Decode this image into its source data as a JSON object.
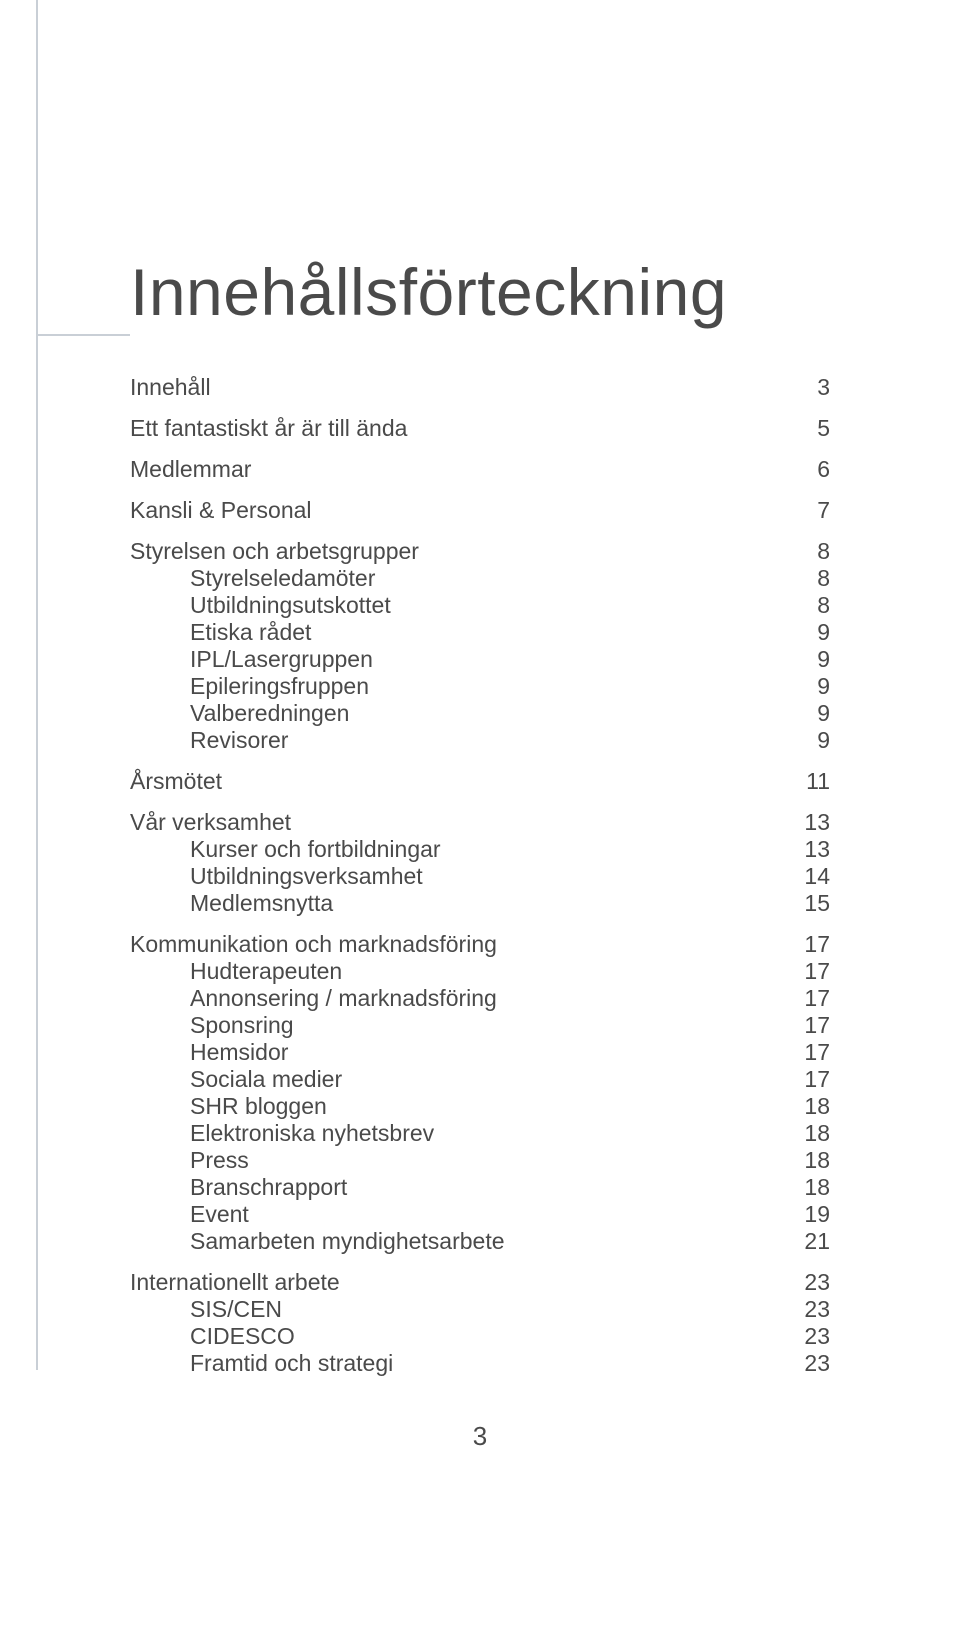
{
  "title": "Innehållsförteckning",
  "colors": {
    "background": "#ffffff",
    "text": "#4a4a4a",
    "rule": "#c9cfd6"
  },
  "typography": {
    "title_fontsize": 66,
    "title_weight": 200,
    "body_fontsize": 23,
    "body_weight": 300,
    "font_family": "Helvetica Neue"
  },
  "toc": [
    {
      "label": "Innehåll",
      "page": "3",
      "level": 0
    },
    {
      "label": "Ett fantastiskt år är till ända",
      "page": "5",
      "level": 0
    },
    {
      "label": "Medlemmar",
      "page": "6",
      "level": 0
    },
    {
      "label": "Kansli & Personal",
      "page": "7",
      "level": 0
    },
    {
      "label": "Styrelsen och arbetsgrupper",
      "page": "8",
      "level": 0
    },
    {
      "label": "Styrelseledamöter",
      "page": "8",
      "level": 1
    },
    {
      "label": "Utbildningsutskottet",
      "page": "8",
      "level": 1
    },
    {
      "label": "Etiska rådet",
      "page": "9",
      "level": 1
    },
    {
      "label": "IPL/Lasergruppen",
      "page": "9",
      "level": 1
    },
    {
      "label": "Epileringsfruppen",
      "page": "9",
      "level": 1
    },
    {
      "label": "Valberedningen",
      "page": "9",
      "level": 1
    },
    {
      "label": "Revisorer",
      "page": "9",
      "level": 1
    },
    {
      "label": "Årsmötet",
      "page": "11",
      "level": 0
    },
    {
      "label": "Vår verksamhet",
      "page": "13",
      "level": 0
    },
    {
      "label": "Kurser och fortbildningar",
      "page": "13",
      "level": 1
    },
    {
      "label": "Utbildningsverksamhet",
      "page": "14",
      "level": 1
    },
    {
      "label": "Medlemsnytta",
      "page": "15",
      "level": 1
    },
    {
      "label": "Kommunikation och marknadsföring",
      "page": "17",
      "level": 0
    },
    {
      "label": "Hudterapeuten",
      "page": "17",
      "level": 1
    },
    {
      "label": "Annonsering / marknadsföring",
      "page": "17",
      "level": 1
    },
    {
      "label": "Sponsring",
      "page": "17",
      "level": 1
    },
    {
      "label": "Hemsidor",
      "page": "17",
      "level": 1
    },
    {
      "label": "Sociala medier",
      "page": "17",
      "level": 1
    },
    {
      "label": "SHR bloggen",
      "page": "18",
      "level": 1
    },
    {
      "label": "Elektroniska nyhetsbrev",
      "page": "18",
      "level": 1
    },
    {
      "label": "Press",
      "page": "18",
      "level": 1
    },
    {
      "label": "Branschrapport",
      "page": "18",
      "level": 1
    },
    {
      "label": "Event",
      "page": "19",
      "level": 1
    },
    {
      "label": "Samarbeten myndighetsarbete",
      "page": "21",
      "level": 1
    },
    {
      "label": "Internationellt arbete",
      "page": "23",
      "level": 0
    },
    {
      "label": "SIS/CEN",
      "page": "23",
      "level": 1
    },
    {
      "label": "CIDESCO",
      "page": "23",
      "level": 1
    },
    {
      "label": "Framtid och strategi",
      "page": "23",
      "level": 1
    }
  ],
  "footer_page_number": "3"
}
